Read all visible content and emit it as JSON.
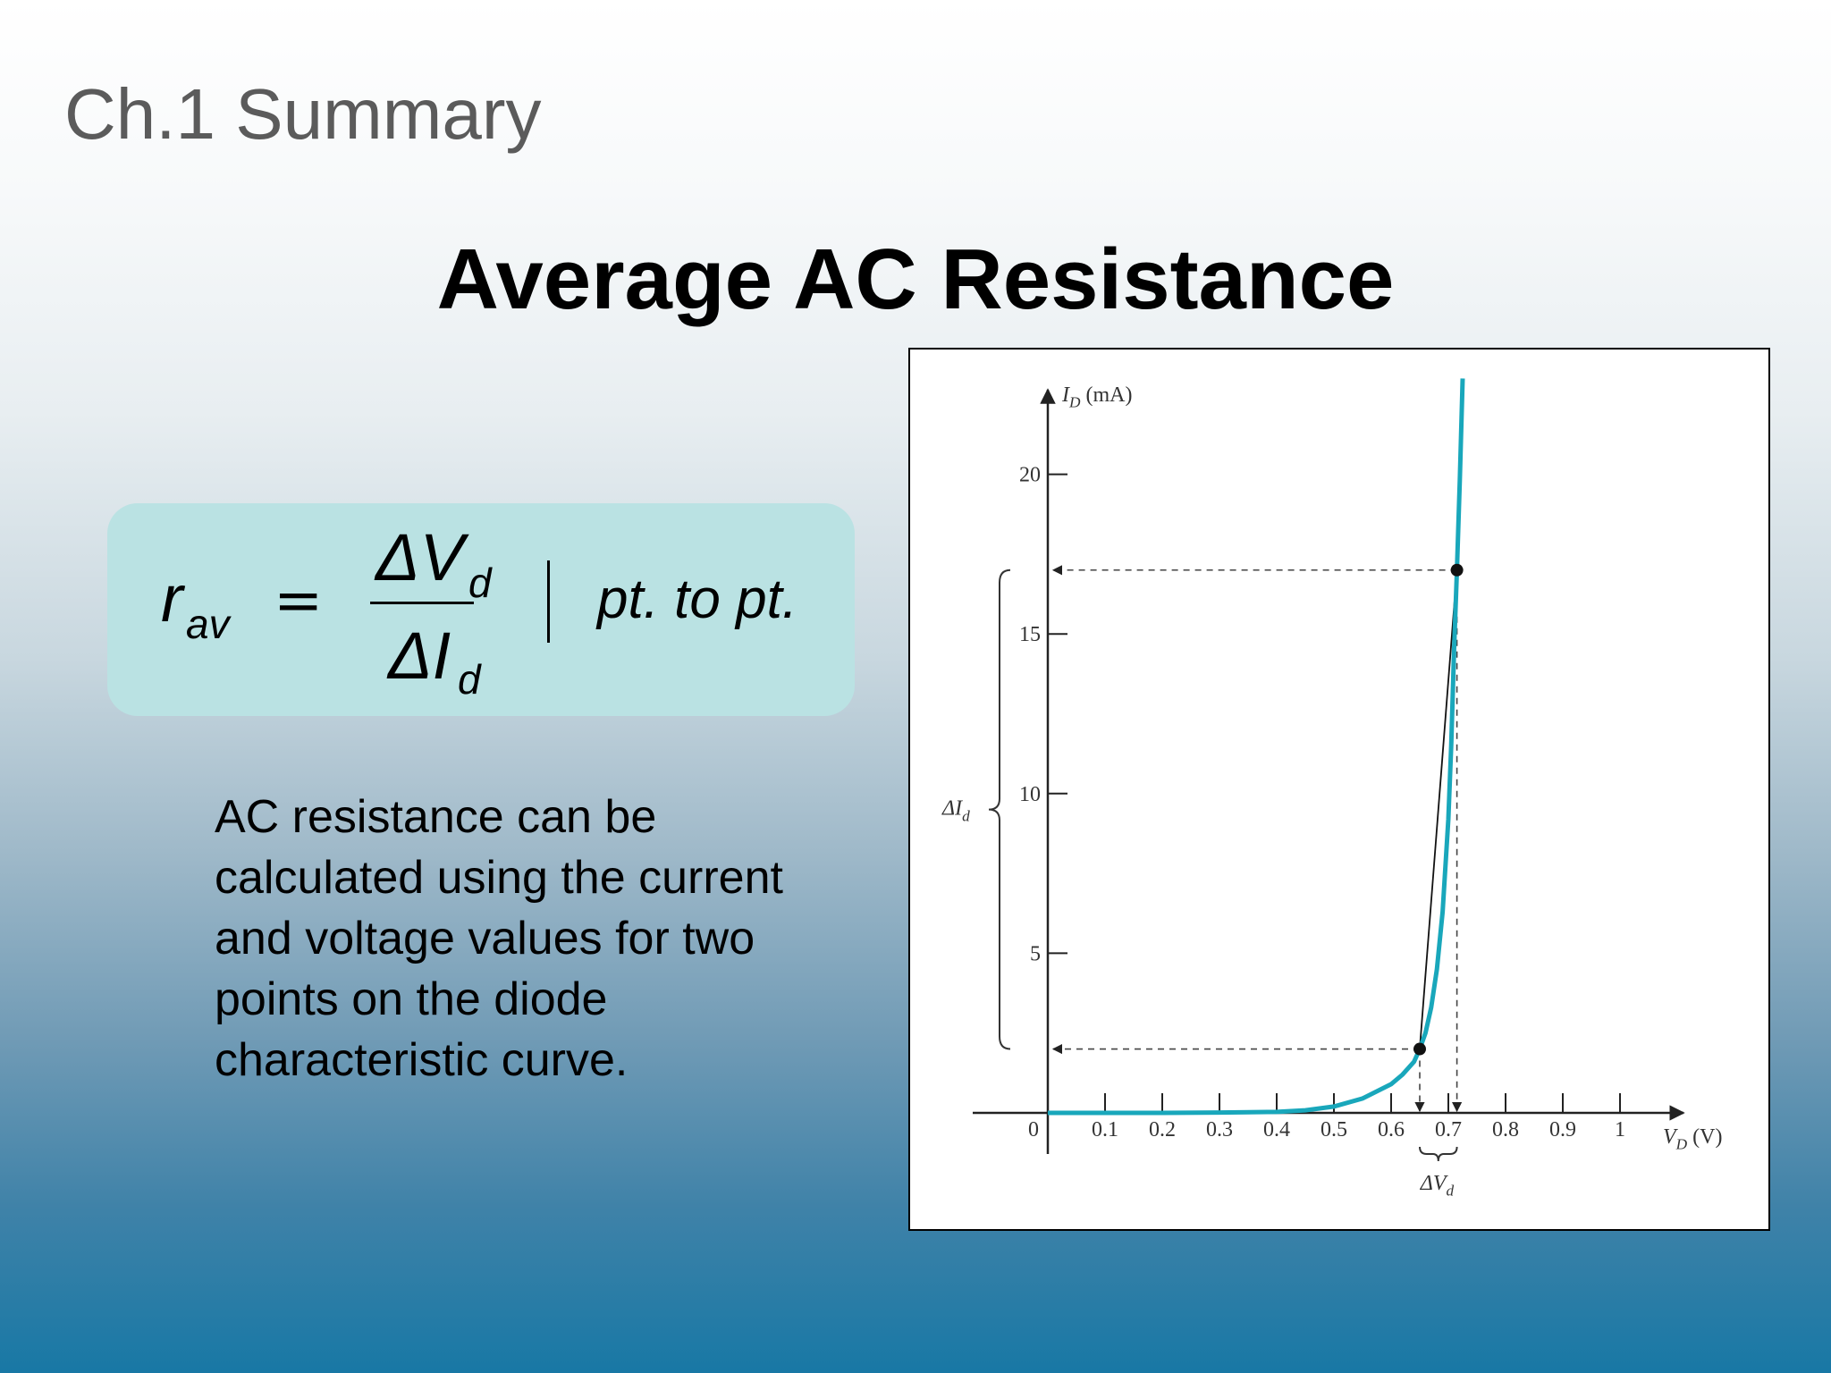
{
  "header": {
    "section": "Ch.1 Summary",
    "title": "Average AC Resistance"
  },
  "formula": {
    "lhs": "r",
    "lhs_sub": "av",
    "equals": "=",
    "numerator": "ΔV",
    "numerator_sub": "d",
    "denominator": "ΔI",
    "denominator_sub": "d",
    "qualifier": "pt. to pt."
  },
  "description": "AC resistance can be calculated using the current and voltage values for two points on the diode characteristic curve.",
  "colors": {
    "curve": "#19a7bb",
    "formula_box": "#bae2e3",
    "section_title": "#5b5b5b"
  },
  "chart_data": {
    "type": "line",
    "y_label": {
      "main": "I",
      "sub": "D",
      "unit": "(mA)"
    },
    "x_label": {
      "main": "V",
      "sub": "D",
      "unit": "(V)"
    },
    "x_ticks": [
      "0",
      "0.1",
      "0.2",
      "0.3",
      "0.4",
      "0.5",
      "0.6",
      "0.7",
      "0.8",
      "0.9",
      "1"
    ],
    "y_ticks": [
      "5",
      "10",
      "15",
      "20"
    ],
    "xlim": [
      0,
      1.1
    ],
    "ylim": [
      0,
      23
    ],
    "curve": {
      "x": [
        0,
        0.1,
        0.2,
        0.3,
        0.4,
        0.45,
        0.5,
        0.55,
        0.6,
        0.62,
        0.64,
        0.65,
        0.66,
        0.67,
        0.68,
        0.69,
        0.7,
        0.705,
        0.71,
        0.715,
        0.72,
        0.725
      ],
      "y": [
        0,
        0,
        0,
        0.01,
        0.03,
        0.08,
        0.2,
        0.45,
        0.9,
        1.2,
        1.6,
        2.0,
        2.5,
        3.3,
        4.5,
        6.3,
        9.2,
        11.5,
        14.5,
        17.0,
        19.8,
        23
      ]
    },
    "points": [
      {
        "x": 0.65,
        "y": 2.0
      },
      {
        "x": 0.715,
        "y": 17.0
      }
    ],
    "annotations": {
      "delta_i": "ΔI",
      "delta_i_sub": "d",
      "delta_v": "ΔV",
      "delta_v_sub": "d"
    }
  }
}
